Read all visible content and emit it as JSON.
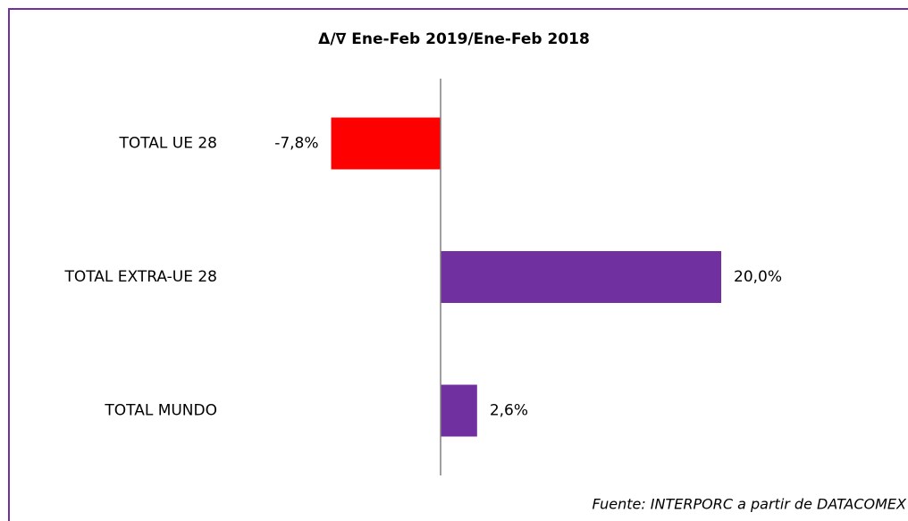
{
  "chart_data": {
    "type": "hbar",
    "title": "Δ/∇  Ene-Feb 2019/Ene-Feb 2018",
    "categories": [
      "TOTAL UE 28",
      "TOTAL EXTRA-UE 28",
      "TOTAL MUNDO"
    ],
    "values": [
      -7.8,
      20.0,
      2.6
    ],
    "value_labels": [
      "-7,8%",
      "20,0%",
      "2,6%"
    ],
    "colors": [
      "#ff0000",
      "#7030a0",
      "#7030a0"
    ],
    "xlim": [
      -15,
      25
    ],
    "source": "Fuente: INTERPORC  a partir de DATACOMEX"
  }
}
